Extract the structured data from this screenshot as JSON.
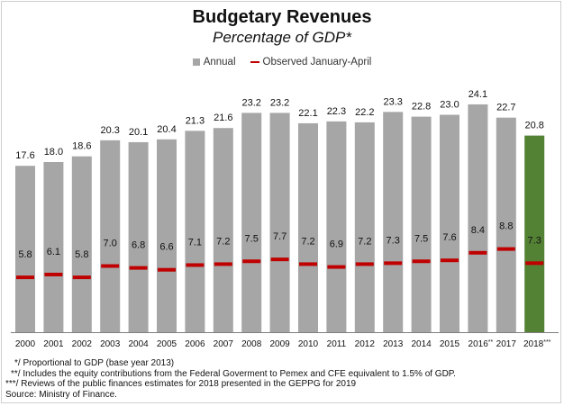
{
  "title": "Budgetary Revenues",
  "subtitle": "Percentage of GDP*",
  "legend": {
    "annual": "Annual",
    "observed": "Observed January-April"
  },
  "chart_data": {
    "type": "bar",
    "title": "Budgetary Revenues",
    "subtitle": "Percentage of GDP*",
    "categories": [
      "2000",
      "2001",
      "2002",
      "2003",
      "2004",
      "2005",
      "2006",
      "2007",
      "2008",
      "2009",
      "2010",
      "2011",
      "2012",
      "2013",
      "2014",
      "2015",
      "2016**",
      "2017",
      "2018***"
    ],
    "series": [
      {
        "name": "Annual",
        "values": [
          17.6,
          18.0,
          18.6,
          20.3,
          20.1,
          20.4,
          21.3,
          21.6,
          23.2,
          23.2,
          22.1,
          22.3,
          22.2,
          23.3,
          22.8,
          23.0,
          24.1,
          22.7,
          20.8
        ],
        "color": "#a6a6a6",
        "highlight_last_color": "#548235"
      },
      {
        "name": "Observed January-April",
        "values": [
          5.8,
          6.1,
          5.8,
          7.0,
          6.8,
          6.6,
          7.1,
          7.2,
          7.5,
          7.7,
          7.2,
          6.9,
          7.2,
          7.3,
          7.5,
          7.6,
          8.4,
          8.8,
          7.3
        ],
        "color": "#c00000",
        "marker": "dash"
      }
    ],
    "ylim": [
      0,
      26
    ],
    "grid": false,
    "legend_position": "top-center"
  },
  "footnotes": [
    "*/ Proportional to GDP (base year 2013)",
    "**/ Includes the equity contributions from the Federal Goverment to Pemex and CFE equivalent to 1.5% of GDP.",
    "***/ Reviews of the public finances estimates for 2018 presented in the GEPPG for 2019",
    "Source: Ministry of Finance."
  ]
}
